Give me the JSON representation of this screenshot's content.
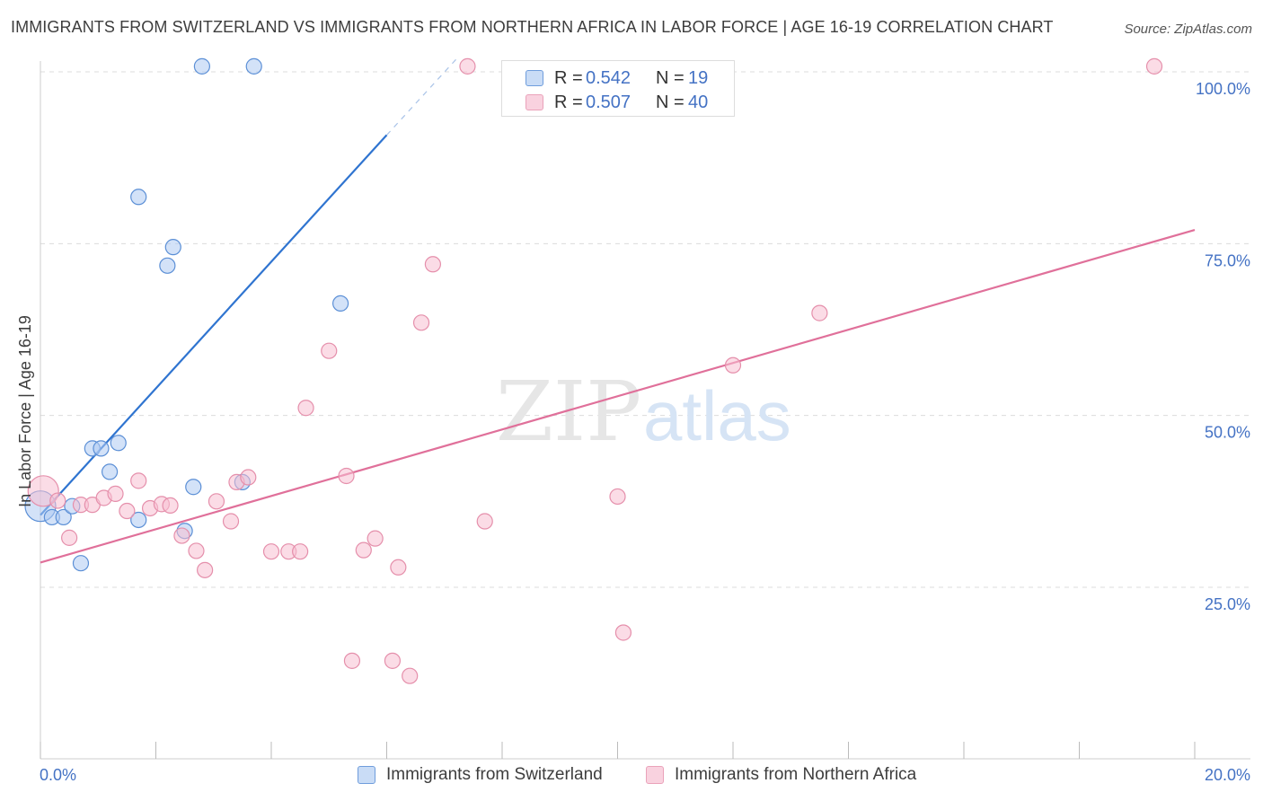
{
  "header": {
    "title": "IMMIGRANTS FROM SWITZERLAND VS IMMIGRANTS FROM NORTHERN AFRICA IN LABOR FORCE | AGE 16-19 CORRELATION CHART",
    "source": "Source: ZipAtlas.com"
  },
  "watermark": {
    "part1": "ZIP",
    "part2": "atlas"
  },
  "legend": {
    "rows": [
      {
        "r_label": "R =",
        "r_value": "0.542",
        "n_label": "N =",
        "n_value": "19"
      },
      {
        "r_label": "R =",
        "r_value": "0.507",
        "n_label": "N =",
        "n_value": "40"
      }
    ]
  },
  "colors": {
    "blue_fill": "#aecbf2",
    "blue_stroke": "#5b8fd6",
    "blue_line": "#2f74d0",
    "pink_fill": "#f7c0d2",
    "pink_stroke": "#e58fab",
    "pink_line": "#e0709a",
    "accent_text": "#4472c4"
  },
  "chart_data": {
    "type": "scatter",
    "title": "IMMIGRANTS FROM SWITZERLAND VS IMMIGRANTS FROM NORTHERN AFRICA IN LABOR FORCE | AGE 16-19 CORRELATION CHART",
    "xlabel": "",
    "ylabel": "In Labor Force | Age 16-19",
    "xlim": [
      0,
      20
    ],
    "ylim": [
      0,
      102
    ],
    "x_tick_labels": [
      "0.0%",
      "20.0%"
    ],
    "y_ticks": [
      25,
      50,
      75,
      100
    ],
    "y_tick_labels": [
      "25.0%",
      "50.0%",
      "75.0%",
      "100.0%"
    ],
    "grid": true,
    "series": [
      {
        "name": "Immigrants from Switzerland",
        "color": "blue",
        "r": "0.542",
        "n": "19",
        "points": [
          {
            "x": 0.0,
            "y": 36.8,
            "size": "large"
          },
          {
            "x": 0.2,
            "y": 35.2
          },
          {
            "x": 0.4,
            "y": 35.2
          },
          {
            "x": 0.55,
            "y": 36.8
          },
          {
            "x": 0.7,
            "y": 28.5
          },
          {
            "x": 0.9,
            "y": 45.2
          },
          {
            "x": 1.05,
            "y": 45.2
          },
          {
            "x": 1.2,
            "y": 41.8
          },
          {
            "x": 1.35,
            "y": 46.0
          },
          {
            "x": 1.7,
            "y": 34.8
          },
          {
            "x": 1.7,
            "y": 81.8
          },
          {
            "x": 2.2,
            "y": 71.8
          },
          {
            "x": 2.3,
            "y": 74.5
          },
          {
            "x": 2.5,
            "y": 33.2
          },
          {
            "x": 2.65,
            "y": 39.6
          },
          {
            "x": 2.8,
            "y": 100.8
          },
          {
            "x": 3.5,
            "y": 40.3
          },
          {
            "x": 3.7,
            "y": 100.8
          },
          {
            "x": 5.2,
            "y": 66.3
          }
        ],
        "trendline": {
          "x": [
            0.0,
            6.0
          ],
          "y": [
            35.5,
            90.8
          ],
          "dashed_to": {
            "x": 7.2,
            "y": 101.8
          }
        }
      },
      {
        "name": "Immigrants from Northern Africa",
        "color": "pink",
        "r": "0.507",
        "n": "40",
        "points": [
          {
            "x": 0.05,
            "y": 39.0,
            "size": "large"
          },
          {
            "x": 0.3,
            "y": 37.6
          },
          {
            "x": 0.5,
            "y": 32.2
          },
          {
            "x": 0.7,
            "y": 37.0
          },
          {
            "x": 0.9,
            "y": 37.0
          },
          {
            "x": 1.1,
            "y": 38.0
          },
          {
            "x": 1.3,
            "y": 38.6
          },
          {
            "x": 1.5,
            "y": 36.1
          },
          {
            "x": 1.7,
            "y": 40.5
          },
          {
            "x": 1.9,
            "y": 36.5
          },
          {
            "x": 2.1,
            "y": 37.1
          },
          {
            "x": 2.25,
            "y": 36.9
          },
          {
            "x": 2.45,
            "y": 32.5
          },
          {
            "x": 2.7,
            "y": 30.3
          },
          {
            "x": 2.85,
            "y": 27.5
          },
          {
            "x": 3.05,
            "y": 37.5
          },
          {
            "x": 3.3,
            "y": 34.6
          },
          {
            "x": 3.4,
            "y": 40.3
          },
          {
            "x": 3.6,
            "y": 41.0
          },
          {
            "x": 4.0,
            "y": 30.2
          },
          {
            "x": 4.3,
            "y": 30.2
          },
          {
            "x": 4.5,
            "y": 30.2
          },
          {
            "x": 4.6,
            "y": 51.1
          },
          {
            "x": 5.0,
            "y": 59.4
          },
          {
            "x": 5.3,
            "y": 41.2
          },
          {
            "x": 5.4,
            "y": 14.3
          },
          {
            "x": 5.6,
            "y": 30.4
          },
          {
            "x": 5.8,
            "y": 32.1
          },
          {
            "x": 6.1,
            "y": 14.3
          },
          {
            "x": 6.2,
            "y": 27.9
          },
          {
            "x": 6.4,
            "y": 12.1
          },
          {
            "x": 6.6,
            "y": 63.5
          },
          {
            "x": 6.8,
            "y": 72.0
          },
          {
            "x": 7.4,
            "y": 100.8
          },
          {
            "x": 7.7,
            "y": 34.6
          },
          {
            "x": 10.0,
            "y": 38.2
          },
          {
            "x": 10.1,
            "y": 18.4
          },
          {
            "x": 12.0,
            "y": 57.3
          },
          {
            "x": 13.5,
            "y": 64.9
          },
          {
            "x": 19.3,
            "y": 100.8
          }
        ],
        "trendline": {
          "x": [
            0.0,
            20.0
          ],
          "y": [
            28.6,
            77.0
          ]
        }
      }
    ]
  },
  "bottom_legend": {
    "items": [
      {
        "label": "Immigrants from Switzerland"
      },
      {
        "label": "Immigrants from Northern Africa"
      }
    ]
  }
}
